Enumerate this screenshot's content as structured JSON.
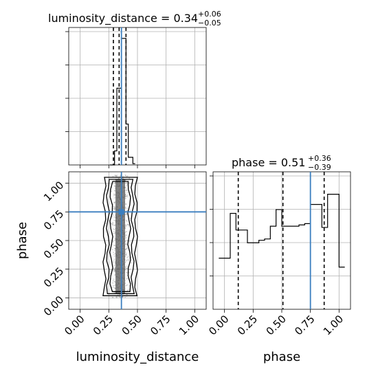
{
  "chart_data": [
    {
      "type": "histogram",
      "panel": "luminosity_distance-1d",
      "title": {
        "main": "luminosity_distance = 0.34",
        "sup": "+0.06",
        "sub": "−0.05"
      },
      "x_range": [
        -0.1,
        1.1
      ],
      "x_ticks": [
        0.0,
        0.25,
        0.5,
        0.75,
        1.0
      ],
      "bins": [
        0.26,
        0.28,
        0.3,
        0.32,
        0.34,
        0.36,
        0.38,
        0.4,
        0.42,
        0.44,
        0.46,
        0.48
      ],
      "counts": [
        0,
        0,
        0.11,
        0.6,
        0.6,
        0.99,
        0.99,
        0.32,
        0.06,
        0.06,
        0.01
      ],
      "quantiles": [
        0.29,
        0.34,
        0.4
      ],
      "truth": 0.36,
      "grid": true
    },
    {
      "type": "histogram",
      "panel": "phase-1d",
      "title": {
        "main": "phase = 0.51",
        "sup": "+0.36",
        "sub": "−0.39"
      },
      "x_range": [
        -0.1,
        1.1
      ],
      "x_ticks": [
        0.0,
        0.25,
        0.5,
        0.75,
        1.0
      ],
      "bins": [
        -0.05,
        0.0,
        0.05,
        0.1,
        0.15,
        0.2,
        0.25,
        0.3,
        0.35,
        0.4,
        0.45,
        0.5,
        0.55,
        0.6,
        0.65,
        0.7,
        0.75,
        0.8,
        0.85,
        0.9,
        0.95,
        1.0,
        1.05
      ],
      "counts": [
        0.4,
        0.4,
        0.75,
        0.62,
        0.62,
        0.52,
        0.52,
        0.54,
        0.55,
        0.65,
        0.78,
        0.65,
        0.65,
        0.65,
        0.66,
        0.67,
        0.82,
        0.82,
        0.64,
        0.9,
        0.9,
        0.33
      ],
      "quantiles": [
        0.12,
        0.51,
        0.87
      ],
      "truth": 0.75,
      "grid": true
    },
    {
      "type": "scatter",
      "panel": "2d-density",
      "xlabel": "luminosity_distance",
      "ylabel": "phase",
      "x_range": [
        -0.1,
        1.1
      ],
      "y_range": [
        -0.1,
        1.1
      ],
      "x_ticks": [
        0.0,
        0.25,
        0.5,
        0.75,
        1.0
      ],
      "y_ticks": [
        0.0,
        0.25,
        0.5,
        0.75,
        1.0
      ],
      "x_center": 0.35,
      "x_spread": 0.035,
      "y_extent": [
        0.0,
        1.07
      ],
      "truth": {
        "x": 0.36,
        "y": 0.75
      },
      "grid": true
    }
  ],
  "tick_labels": {
    "x": [
      "0.00",
      "0.25",
      "0.50",
      "0.75",
      "1.00"
    ],
    "y": [
      "0.00",
      "0.25",
      "0.50",
      "0.75",
      "1.00"
    ]
  },
  "colors": {
    "truth": "#3b7fbf",
    "points": "#6e6e6e",
    "density": "#5a5a5a"
  }
}
